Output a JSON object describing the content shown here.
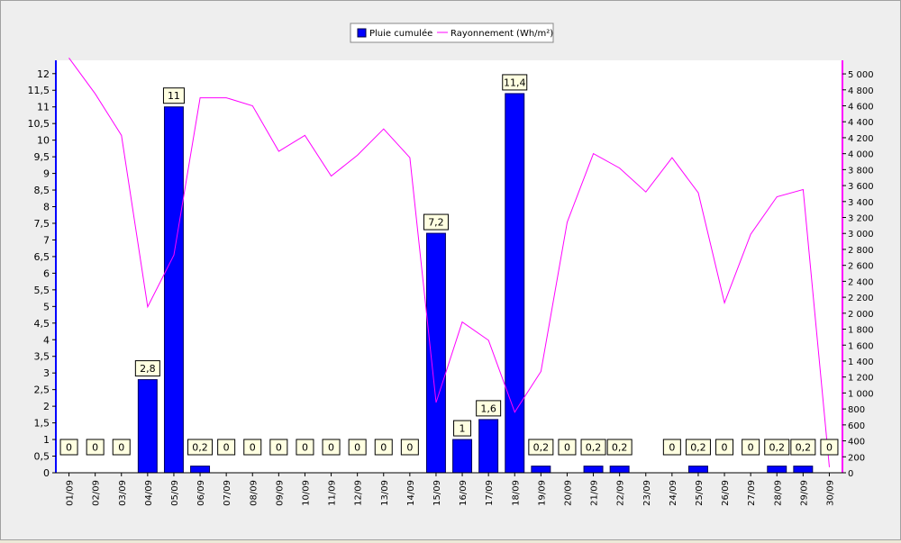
{
  "chart_data": {
    "type": "bar+line",
    "categories": [
      "01/09",
      "02/09",
      "03/09",
      "04/09",
      "05/09",
      "06/09",
      "07/09",
      "08/09",
      "09/09",
      "10/09",
      "11/09",
      "12/09",
      "13/09",
      "14/09",
      "15/09",
      "16/09",
      "17/09",
      "18/09",
      "19/09",
      "20/09",
      "21/09",
      "22/09",
      "23/09",
      "24/09",
      "25/09",
      "26/09",
      "27/09",
      "28/09",
      "29/09",
      "30/09"
    ],
    "legend_position": "top-center",
    "grid": false,
    "series": [
      {
        "name": "Pluie cumulée",
        "type": "bar",
        "axis": "left",
        "color": "#0000ff",
        "values": [
          0,
          0,
          0,
          2.8,
          11,
          0.2,
          0,
          0,
          0,
          0,
          0,
          0,
          0,
          0,
          7.2,
          1,
          1.6,
          11.4,
          0.2,
          0,
          0.2,
          0.2,
          0,
          0,
          0.2,
          0,
          0,
          0.2,
          0.2,
          0
        ],
        "labels": [
          "0",
          "0",
          "0",
          "2,8",
          "11",
          "0,2",
          "0",
          "0",
          "0",
          "0",
          "0",
          "0",
          "0",
          "0",
          "7,2",
          "1",
          "1,6",
          "11,4",
          "0,2",
          "0",
          "0,2",
          "0,2",
          "",
          "0",
          "0,2",
          "0",
          "0",
          "0,2",
          "0,2",
          "0"
        ]
      },
      {
        "name": "Rayonnement (Wh/m²)",
        "type": "line",
        "axis": "right",
        "color": "#ff00ff",
        "values": [
          5200,
          4750,
          4230,
          2080,
          2730,
          4700,
          4700,
          4600,
          4030,
          4230,
          3720,
          3980,
          4310,
          3950,
          880,
          1890,
          1660,
          760,
          1270,
          3140,
          4000,
          3820,
          3520,
          3950,
          3510,
          2130,
          2990,
          3460,
          3550,
          70
        ]
      }
    ],
    "y_left": {
      "range": [
        0,
        12.4
      ],
      "ticks": [
        0,
        0.5,
        1,
        1.5,
        2,
        2.5,
        3,
        3.5,
        4,
        4.5,
        5,
        5.5,
        6,
        6.5,
        7,
        7.5,
        8,
        8.5,
        9,
        9.5,
        10,
        10.5,
        11,
        11.5,
        12
      ],
      "tick_labels": [
        "0",
        "0,5",
        "1",
        "1,5",
        "2",
        "2,5",
        "3",
        "3,5",
        "4",
        "4,5",
        "5",
        "5,5",
        "6",
        "6,5",
        "7",
        "7,5",
        "8",
        "8,5",
        "9",
        "9,5",
        "10",
        "10,5",
        "11",
        "11,5",
        "12"
      ],
      "color": "#0000ff"
    },
    "y_right": {
      "range": [
        0,
        5170
      ],
      "ticks": [
        0,
        200,
        400,
        600,
        800,
        1000,
        1200,
        1400,
        1600,
        1800,
        2000,
        2200,
        2400,
        2600,
        2800,
        3000,
        3200,
        3400,
        3600,
        3800,
        4000,
        4200,
        4400,
        4600,
        4800,
        5000
      ],
      "tick_labels": [
        "0",
        "200",
        "400",
        "600",
        "800",
        "1 000",
        "1 200",
        "1 400",
        "1 600",
        "1 800",
        "2 000",
        "2 200",
        "2 400",
        "2 600",
        "2 800",
        "3 000",
        "3 200",
        "3 400",
        "3 600",
        "3 800",
        "4 000",
        "4 200",
        "4 400",
        "4 600",
        "4 800",
        "5 000"
      ],
      "color": "#ff00ff"
    }
  }
}
